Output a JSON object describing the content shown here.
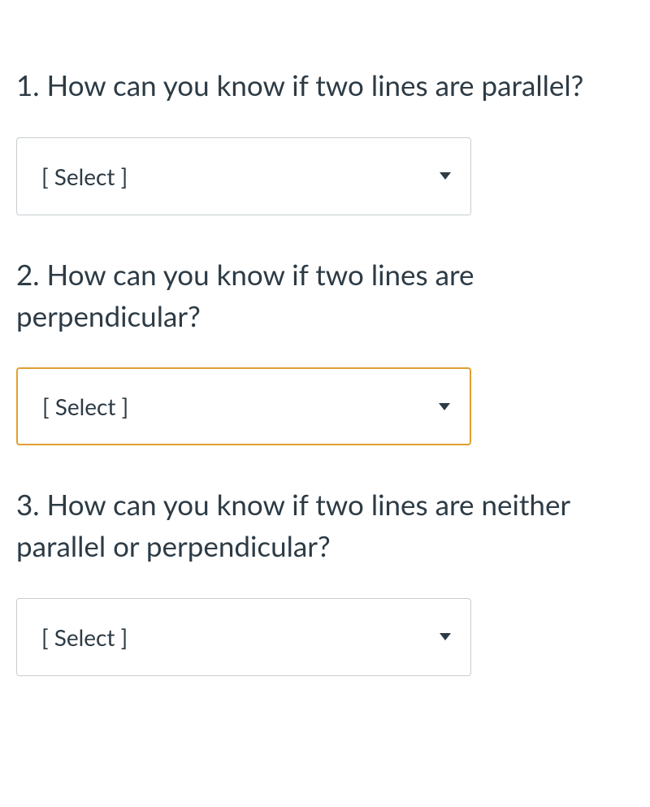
{
  "questions": [
    {
      "number": "1.",
      "text": "How can you know if two lines are parallel?",
      "dropdown_value": "[ Select ]",
      "highlighted": false
    },
    {
      "number": "2.",
      "text": "How can you know if two lines are perpendicular?",
      "dropdown_value": "[ Select ]",
      "highlighted": true
    },
    {
      "number": "3.",
      "text": "How can you know if two lines are neither parallel or perpendicular?",
      "dropdown_value": "[ Select ]",
      "highlighted": false
    }
  ],
  "styling": {
    "background_color": "#ffffff",
    "text_color": "#2d3b45",
    "border_color": "#c7cdd1",
    "highlight_border_color": "#e0a030",
    "question_fontsize": 35,
    "select_fontsize": 28,
    "dropdown_width": 560,
    "dropdown_height": 96
  }
}
